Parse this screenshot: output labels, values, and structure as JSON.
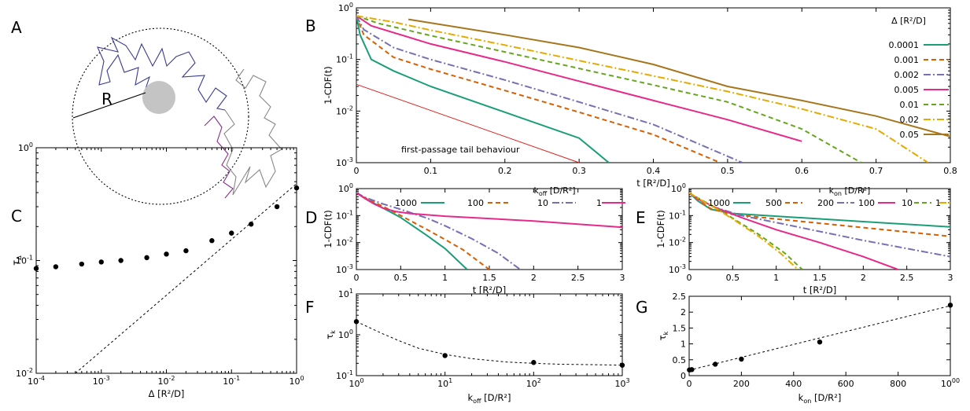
{
  "panel_labels": [
    "A",
    "B",
    "C",
    "D",
    "E",
    "F",
    "G"
  ],
  "chart_data": [
    {
      "id": "A",
      "type": "diagram",
      "labels": {
        "radius": "R"
      }
    },
    {
      "id": "B",
      "type": "line",
      "yscale": "log",
      "xlim": [
        0,
        0.8
      ],
      "ylim": [
        0.001,
        1
      ],
      "xticks": [
        "0",
        "0.1",
        "0.2",
        "0.3",
        "0.4",
        "0.5",
        "0.6",
        "0.7",
        "0.8"
      ],
      "yticks": [
        "10-3",
        "10-2",
        "10-1",
        "100"
      ],
      "xlabel": "t [R²/D]",
      "ylabel": "1-CDF(t)",
      "legend_title": "Δ [R²/D]",
      "annotation": "first-passage tail behaviour",
      "colors": {
        "tail": "#e0201b"
      },
      "series": [
        {
          "name": "0.0001",
          "color": "#1a9e77",
          "dash": "solid",
          "x": [
            0,
            0.005,
            0.02,
            0.05,
            0.1,
            0.2,
            0.3,
            0.34
          ],
          "y": [
            0.7,
            0.3,
            0.1,
            0.06,
            0.03,
            0.0095,
            0.003,
            0.001
          ]
        },
        {
          "name": "0.001",
          "color": "#d95f02",
          "dash": "6,4",
          "x": [
            0,
            0.01,
            0.05,
            0.1,
            0.2,
            0.3,
            0.4,
            0.49
          ],
          "y": [
            0.7,
            0.3,
            0.11,
            0.065,
            0.025,
            0.0095,
            0.0035,
            0.001
          ]
        },
        {
          "name": "0.002",
          "color": "#7570b3",
          "dash": "9,3,2,3",
          "x": [
            0,
            0.01,
            0.05,
            0.1,
            0.2,
            0.3,
            0.4,
            0.52
          ],
          "y": [
            0.7,
            0.38,
            0.17,
            0.1,
            0.04,
            0.015,
            0.0055,
            0.001
          ]
        },
        {
          "name": "0.005",
          "color": "#e7298a",
          "dash": "solid",
          "x": [
            0,
            0.02,
            0.1,
            0.2,
            0.3,
            0.4,
            0.5,
            0.6
          ],
          "y": [
            0.7,
            0.45,
            0.2,
            0.09,
            0.038,
            0.016,
            0.0068,
            0.0026
          ]
        },
        {
          "name": "0.01",
          "color": "#66a61e",
          "dash": "6,4",
          "x": [
            0,
            0.03,
            0.1,
            0.2,
            0.3,
            0.4,
            0.5,
            0.6,
            0.68
          ],
          "y": [
            0.7,
            0.5,
            0.29,
            0.14,
            0.067,
            0.032,
            0.015,
            0.0045,
            0.001
          ]
        },
        {
          "name": "0.02",
          "color": "#e6ab02",
          "dash": "9,3,2,3",
          "x": [
            0,
            0.05,
            0.1,
            0.2,
            0.3,
            0.4,
            0.5,
            0.6,
            0.7,
            0.77
          ],
          "y": [
            0.7,
            0.53,
            0.37,
            0.19,
            0.095,
            0.048,
            0.024,
            0.011,
            0.0045,
            0.001
          ]
        },
        {
          "name": "0.05",
          "color": "#a6761d",
          "dash": "solid",
          "x": [
            0.07,
            0.2,
            0.3,
            0.4,
            0.5,
            0.6,
            0.7,
            0.8
          ],
          "y": [
            0.6,
            0.3,
            0.17,
            0.08,
            0.03,
            0.016,
            0.008,
            0.0032
          ]
        }
      ],
      "tail_line": {
        "x": [
          0,
          0.3
        ],
        "y": [
          0.033,
          0.001
        ]
      }
    },
    {
      "id": "C",
      "type": "scatter",
      "xscale": "log",
      "yscale": "log",
      "xlim": [
        0.0001,
        1
      ],
      "ylim": [
        0.01,
        1
      ],
      "xticks": [
        "10-4",
        "10-3",
        "10-2",
        "10-1",
        "100"
      ],
      "yticks": [
        "10-2",
        "10-1",
        "100"
      ],
      "xlabel": "Δ [R²/D]",
      "ylabel": "τΔ",
      "x": [
        0.0001,
        0.0002,
        0.0005,
        0.001,
        0.002,
        0.005,
        0.01,
        0.02,
        0.05,
        0.1,
        0.2,
        0.5,
        1
      ],
      "y": [
        0.085,
        0.088,
        0.093,
        0.097,
        0.1,
        0.106,
        0.114,
        0.122,
        0.15,
        0.175,
        0.21,
        0.3,
        0.44
      ],
      "fit_line": {
        "x": [
          0.0004,
          1
        ],
        "y": [
          0.01,
          0.48
        ]
      }
    },
    {
      "id": "D",
      "type": "line",
      "yscale": "log",
      "xlim": [
        0,
        3
      ],
      "ylim": [
        0.001,
        1
      ],
      "xticks": [
        "0",
        "0.5",
        "1",
        "1.5",
        "2",
        "2.5",
        "3"
      ],
      "yticks": [
        "10-3",
        "10-2",
        "10-1",
        "100"
      ],
      "xlabel": "t [R²/D]",
      "ylabel": "1-CDF(t)",
      "legend_title": "koff [D/R²]",
      "series": [
        {
          "name": "1000",
          "color": "#1a9e77",
          "dash": "solid",
          "x": [
            0,
            0.1,
            0.3,
            0.5,
            0.8,
            1.0,
            1.25
          ],
          "y": [
            0.7,
            0.43,
            0.19,
            0.085,
            0.018,
            0.006,
            0.001
          ]
        },
        {
          "name": "100",
          "color": "#d95f02",
          "dash": "6,4",
          "x": [
            0,
            0.1,
            0.3,
            0.5,
            0.8,
            1.0,
            1.2,
            1.5
          ],
          "y": [
            0.7,
            0.45,
            0.22,
            0.1,
            0.03,
            0.013,
            0.0055,
            0.001
          ]
        },
        {
          "name": "10",
          "color": "#7570b3",
          "dash": "9,3,2,3",
          "x": [
            0,
            0.1,
            0.3,
            0.5,
            0.8,
            1.0,
            1.3,
            1.6,
            1.85
          ],
          "y": [
            0.7,
            0.47,
            0.27,
            0.17,
            0.08,
            0.042,
            0.014,
            0.004,
            0.001
          ]
        },
        {
          "name": "1",
          "color": "#e7298a",
          "dash": "solid",
          "x": [
            0,
            0.1,
            0.2,
            0.3,
            0.45,
            0.6,
            1,
            2,
            3
          ],
          "y": [
            0.7,
            0.42,
            0.27,
            0.19,
            0.14,
            0.12,
            0.095,
            0.063,
            0.037
          ]
        }
      ]
    },
    {
      "id": "E",
      "type": "line",
      "yscale": "log",
      "xlim": [
        0,
        3
      ],
      "ylim": [
        0.001,
        1
      ],
      "xticks": [
        "0",
        "0.5",
        "1",
        "1.5",
        "2",
        "2.5",
        "3"
      ],
      "yticks": [
        "10-3",
        "10-2",
        "10-1",
        "100"
      ],
      "xlabel": "t [R²/D]",
      "ylabel": "1-CDF(t)",
      "legend_title": "kon [D/R²]",
      "series": [
        {
          "name": "1000",
          "color": "#1a9e77",
          "dash": "solid",
          "x": [
            0,
            0.1,
            0.25,
            0.5,
            1,
            2,
            3
          ],
          "y": [
            0.7,
            0.35,
            0.17,
            0.12,
            0.095,
            0.06,
            0.038
          ]
        },
        {
          "name": "500",
          "color": "#d95f02",
          "dash": "6,4",
          "x": [
            0,
            0.1,
            0.25,
            0.5,
            1,
            2,
            3
          ],
          "y": [
            0.7,
            0.37,
            0.18,
            0.11,
            0.075,
            0.036,
            0.017
          ]
        },
        {
          "name": "200",
          "color": "#7570b3",
          "dash": "9,3,2,3",
          "x": [
            0,
            0.1,
            0.3,
            0.6,
            1,
            2,
            3
          ],
          "y": [
            0.7,
            0.4,
            0.2,
            0.1,
            0.055,
            0.012,
            0.003
          ]
        },
        {
          "name": "100",
          "color": "#e7298a",
          "dash": "solid",
          "x": [
            0,
            0.1,
            0.3,
            0.6,
            1,
            1.5,
            2,
            2.4
          ],
          "y": [
            0.7,
            0.42,
            0.2,
            0.085,
            0.03,
            0.01,
            0.003,
            0.001
          ]
        },
        {
          "name": "10",
          "color": "#66a61e",
          "dash": "6,4",
          "x": [
            0,
            0.1,
            0.3,
            0.5,
            0.8,
            1.1,
            1.3
          ],
          "y": [
            0.7,
            0.45,
            0.2,
            0.08,
            0.02,
            0.004,
            0.001
          ]
        },
        {
          "name": "1",
          "color": "#e6ab02",
          "dash": "9,3,2,3",
          "x": [
            0,
            0.1,
            0.3,
            0.5,
            0.8,
            1.05,
            1.25
          ],
          "y": [
            0.7,
            0.44,
            0.19,
            0.075,
            0.017,
            0.004,
            0.001
          ]
        }
      ]
    },
    {
      "id": "F",
      "type": "scatter",
      "xscale": "log",
      "yscale": "log",
      "xlim": [
        1,
        1000
      ],
      "ylim": [
        0.1,
        10
      ],
      "xticks": [
        "100",
        "101",
        "102",
        "103"
      ],
      "yticks": [
        "10-1",
        "100",
        "101"
      ],
      "xlabel": "koff [D/R²]",
      "ylabel": "τk",
      "x": [
        1,
        10,
        100,
        1000
      ],
      "y": [
        2.1,
        0.31,
        0.21,
        0.18
      ],
      "fit_line": {
        "x": [
          1,
          2,
          3,
          5,
          10,
          20,
          50,
          100,
          200,
          500,
          1000
        ],
        "y": [
          2.1,
          1.05,
          0.72,
          0.47,
          0.33,
          0.26,
          0.215,
          0.2,
          0.19,
          0.185,
          0.18
        ]
      }
    },
    {
      "id": "G",
      "type": "scatter",
      "xlim": [
        0,
        1000
      ],
      "ylim": [
        0,
        2.5
      ],
      "xticks": [
        "0",
        "200",
        "400",
        "600",
        "800",
        "1000"
      ],
      "yticks": [
        "0",
        "0.5",
        "1",
        "1.5",
        "2",
        "2.5"
      ],
      "xlabel": "kon [D/R²]",
      "ylabel": "τk",
      "x": [
        1,
        10,
        100,
        200,
        500,
        1000
      ],
      "y": [
        0.18,
        0.19,
        0.36,
        0.52,
        1.06,
        2.22
      ],
      "fit_line": {
        "x": [
          0,
          1000
        ],
        "y": [
          0.17,
          2.2
        ]
      }
    }
  ]
}
